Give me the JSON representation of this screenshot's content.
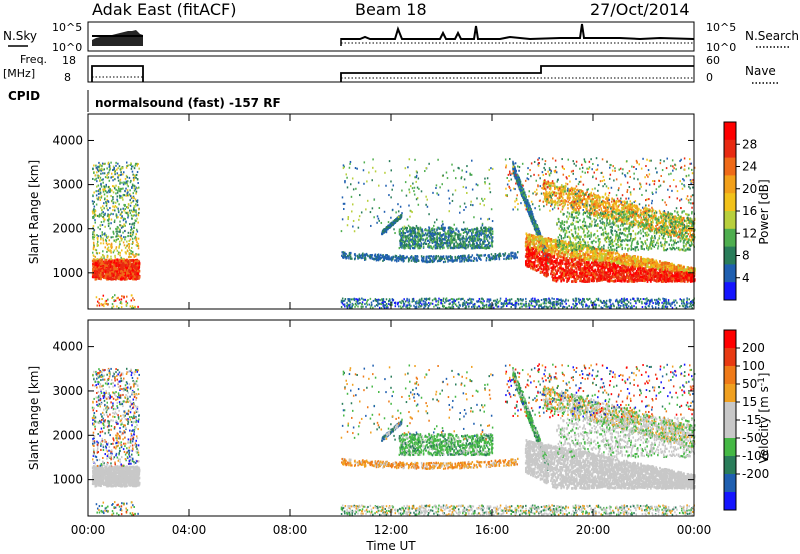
{
  "header": {
    "station": "Adak East (fitACF)",
    "beam": "Beam 18",
    "date": "27/Oct/2014"
  },
  "strips": {
    "nsky_label": "N.Sky",
    "nsky_ticks": [
      "10^5",
      "10^0"
    ],
    "nsearch_label": "N.Search",
    "nsearch_ticks": [
      "10^5",
      "10^0"
    ],
    "freq_label": "Freq.",
    "freq_unit": "[MHz]",
    "freq_ticks": [
      "18",
      "8"
    ],
    "nave_label": "Nave",
    "nave_ticks": [
      "60",
      "0"
    ],
    "cpid_label": "CPID",
    "cpid_text": "normalsound (fast) -157 RF"
  },
  "colors": {
    "power": [
      "#1515ff",
      "#1f5fb0",
      "#2a7d5a",
      "#4fae4f",
      "#b8cf3c",
      "#f2c21a",
      "#f2a01a",
      "#ef6a18",
      "#e82a12",
      "#ff0000"
    ],
    "velocity": [
      "#1515ff",
      "#1f5fb0",
      "#2a7d5a",
      "#45b845",
      "#c8c8c8",
      "#c8c8c8",
      "#f0a020",
      "#ef7a18",
      "#e83a12",
      "#ff0000"
    ]
  },
  "chart_data": [
    {
      "type": "heatmap",
      "panel": "power",
      "xlabel": "",
      "ylabel": "Slant Range [km]",
      "ylim": [
        180,
        4600
      ],
      "xlim_hours": [
        0,
        24
      ],
      "yticks": [
        "1000",
        "2000",
        "3000",
        "4000"
      ],
      "colorbar_label": "Power [dB]",
      "colorbar_ticks": [
        "4",
        "8",
        "12",
        "16",
        "20",
        "24",
        "28"
      ],
      "colorbar_range": [
        0,
        32
      ]
    },
    {
      "type": "heatmap",
      "panel": "velocity",
      "xlabel": "Time UT",
      "ylabel": "Slant Range [km]",
      "ylim": [
        180,
        4600
      ],
      "xlim_hours": [
        0,
        24
      ],
      "xticks": [
        "00:00",
        "04:00",
        "08:00",
        "12:00",
        "16:00",
        "20:00",
        "00:00"
      ],
      "yticks": [
        "1000",
        "2000",
        "3000",
        "4000"
      ],
      "colorbar_label": "Velocity [m s^-1]",
      "colorbar_ticks": [
        "200",
        "100",
        "50",
        "15",
        "-15",
        "-50",
        "-100",
        "-200"
      ]
    }
  ]
}
